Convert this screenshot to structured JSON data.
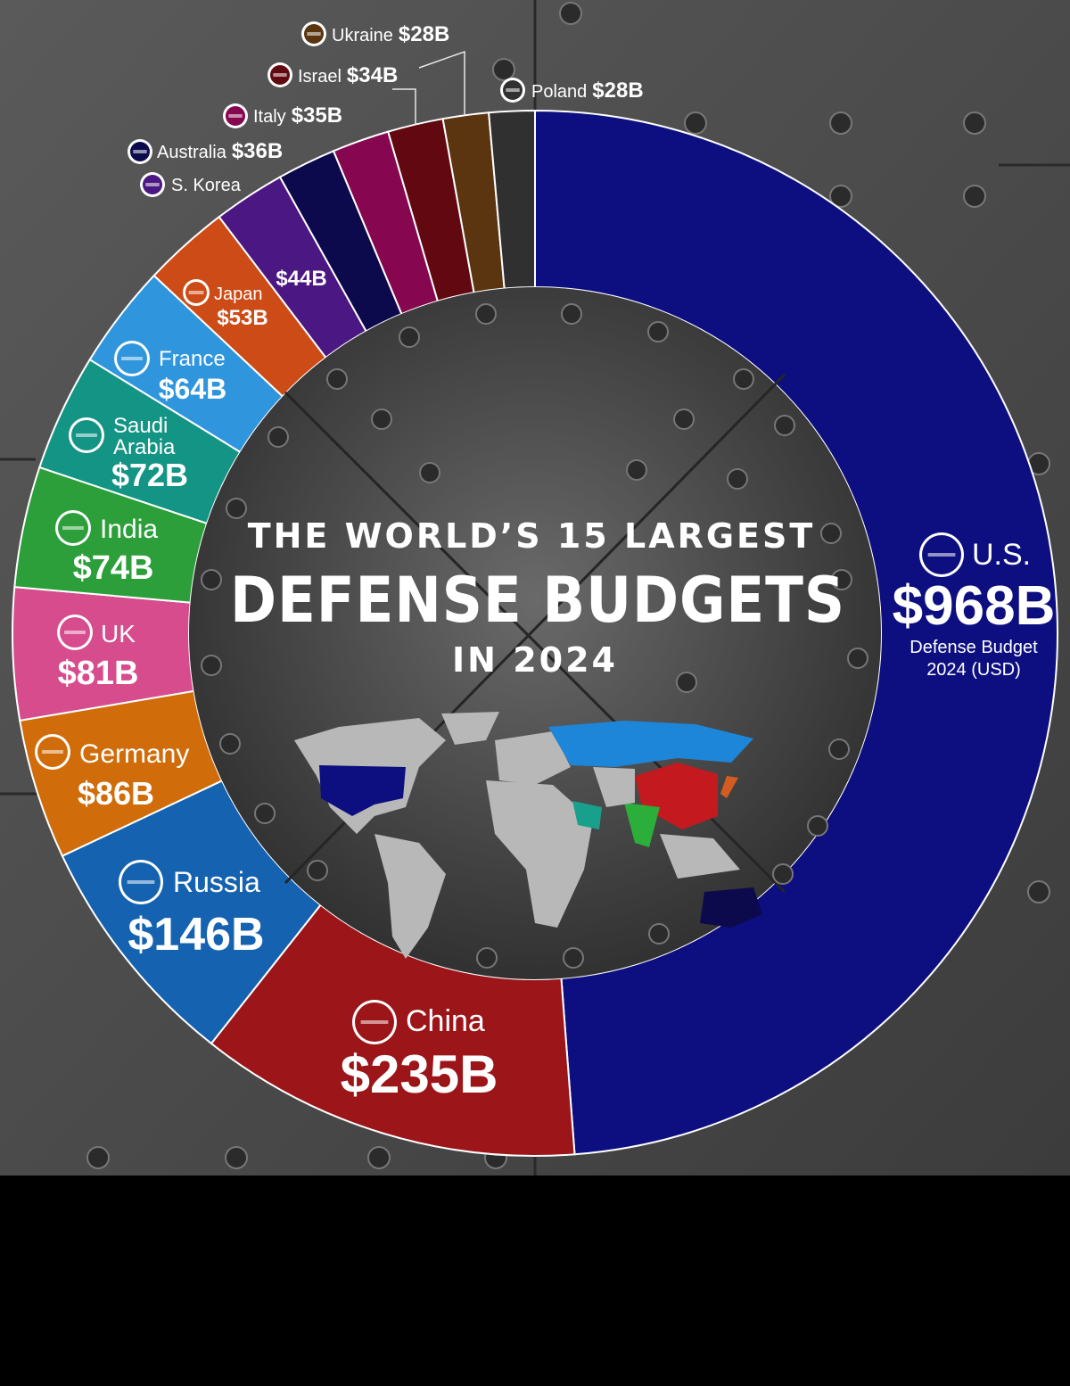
{
  "title": {
    "line1": "THE WORLD’S 15 LARGEST",
    "line2": "DEFENSE BUDGETS",
    "line3": "IN 2024"
  },
  "colors": {
    "background": "#4a4a4a",
    "panel": "#3a3a3a",
    "label_text": "#ffffff"
  },
  "chart_data": {
    "type": "donut",
    "unit": "USD billions",
    "segments": [
      {
        "country": "U.S.",
        "value_label": "$968B",
        "value": 968,
        "color": "#0d0f80",
        "flag": "us-flag-icon",
        "note": "Defense Budget\n2024 (USD)"
      },
      {
        "country": "China",
        "value_label": "$235B",
        "value": 235,
        "color": "#9b1519",
        "flag": "china-flag-icon"
      },
      {
        "country": "Russia",
        "value_label": "$146B",
        "value": 146,
        "color": "#1462b0",
        "flag": "russia-flag-icon"
      },
      {
        "country": "Germany",
        "value_label": "$86B",
        "value": 86,
        "color": "#d06d0a",
        "flag": "germany-flag-icon"
      },
      {
        "country": "UK",
        "value_label": "$81B",
        "value": 81,
        "color": "#d64c8c",
        "flag": "uk-flag-icon"
      },
      {
        "country": "India",
        "value_label": "$74B",
        "value": 74,
        "color": "#2c9e3a",
        "flag": "india-flag-icon"
      },
      {
        "country": "Saudi Arabia",
        "value_label": "$72B",
        "value": 72,
        "color": "#149484",
        "flag": "saudi-flag-icon"
      },
      {
        "country": "France",
        "value_label": "$64B",
        "value": 64,
        "color": "#2f95dd",
        "flag": "france-flag-icon"
      },
      {
        "country": "Japan",
        "value_label": "$53B",
        "value": 53,
        "color": "#cc4b17",
        "flag": "japan-flag-icon"
      },
      {
        "country": "S. Korea",
        "value_label": "$44B",
        "value": 44,
        "color": "#4b1782",
        "flag": "korea-flag-icon"
      },
      {
        "country": "Australia",
        "value_label": "$36B",
        "value": 36,
        "color": "#0c0a4d",
        "flag": "australia-flag-icon"
      },
      {
        "country": "Italy",
        "value_label": "$35B",
        "value": 35,
        "color": "#86064f",
        "flag": "italy-flag-icon"
      },
      {
        "country": "Israel",
        "value_label": "$34B",
        "value": 34,
        "color": "#620810",
        "flag": "israel-flag-icon"
      },
      {
        "country": "Ukraine",
        "value_label": "$28B",
        "value": 28,
        "color": "#5a3510",
        "flag": "ukraine-flag-icon"
      },
      {
        "country": "Poland",
        "value_label": "$28B",
        "value": 28,
        "color": "#303030",
        "flag": "poland-flag-icon"
      }
    ]
  }
}
